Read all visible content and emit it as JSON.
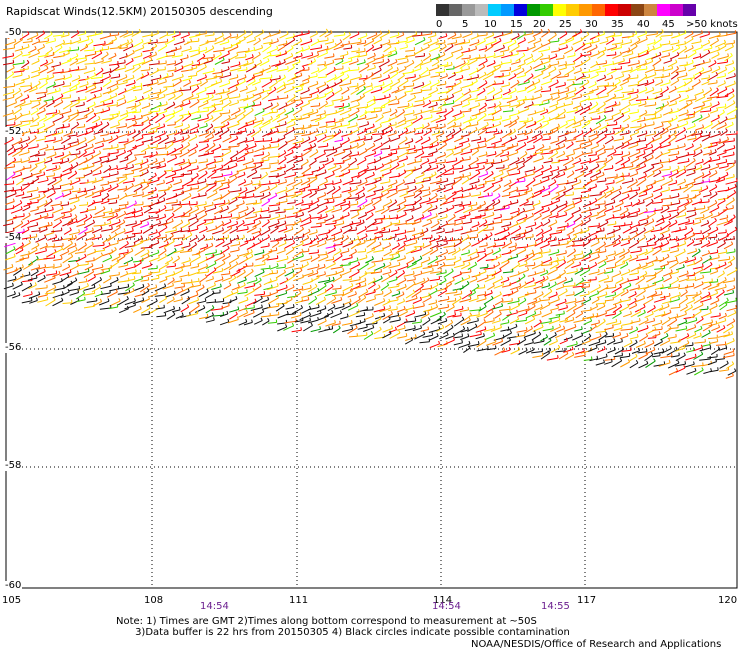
{
  "title": "Rapidscat Winds(12.5KM) 20150305 descending",
  "colorbar": {
    "colors": [
      "#333333",
      "#666666",
      "#999999",
      "#bbbbbb",
      "#00ccff",
      "#0099ff",
      "#0000dd",
      "#009900",
      "#33cc00",
      "#ffff00",
      "#ffcc00",
      "#ff9900",
      "#ff6600",
      "#ff0000",
      "#cc0000",
      "#8b4513",
      "#cd853f",
      "#ff00ff",
      "#cc00cc",
      "#6600aa"
    ],
    "labels": [
      "0",
      "5",
      "10",
      "15",
      "20",
      "25",
      "30",
      "35",
      "40",
      "45",
      ">50 knots"
    ]
  },
  "lat_labels": [
    "-50",
    "-52",
    "-54",
    "-56",
    "-58",
    "-60"
  ],
  "lon_labels": [
    "105",
    "108",
    "111",
    "114",
    "117",
    "120"
  ],
  "times": [
    "14:54",
    "14:54",
    "14:55"
  ],
  "notes": "Note: 1) Times are GMT 2)Times along bottom correspond to measurement at ~50S\n      3)Data buffer is 22 hrs from 20150305 4) Black circles indicate possible contamination",
  "credit": "NOAA/NESDIS/Office of Research and Applications"
}
